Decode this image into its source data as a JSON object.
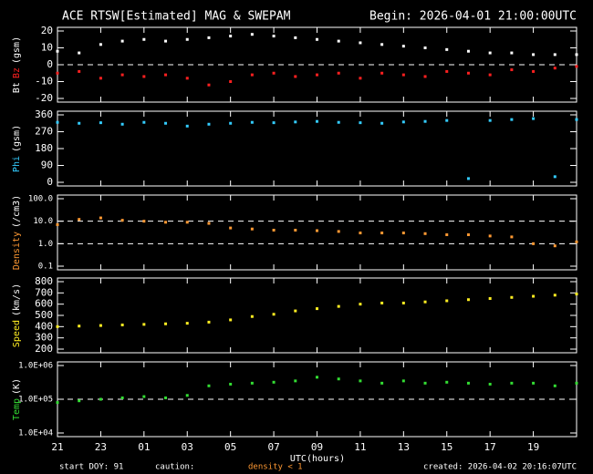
{
  "chart_data": [
    {
      "type": "scatter",
      "title": "ACE RTSW[Estimated] MAG & SWEPAM",
      "subtitle": "Begin: 2026-04-01 21:00:00UTC",
      "ylabel": "(gsm)",
      "xlim": [
        0,
        24
      ],
      "ylim": [
        -20,
        20
      ],
      "yticks": [
        -20,
        -10,
        0,
        10,
        20
      ],
      "hlines": [
        0
      ],
      "x": [
        0,
        1,
        2,
        3,
        4,
        5,
        6,
        7,
        8,
        9,
        10,
        11,
        12,
        13,
        14,
        15,
        16,
        17,
        18,
        19,
        20,
        21,
        22,
        23,
        24
      ],
      "series": [
        {
          "name": "Bt",
          "color": "#ffffff",
          "values": [
            8,
            7,
            12,
            14,
            15,
            14,
            15,
            16,
            17,
            18,
            17,
            16,
            15,
            14,
            13,
            12,
            11,
            10,
            9,
            8,
            7,
            7,
            6,
            6,
            6
          ]
        },
        {
          "name": "Bz",
          "color": "#ff2020",
          "values": [
            -5,
            -4,
            -8,
            -6,
            -7,
            -6,
            -8,
            -12,
            -10,
            -6,
            -5,
            -7,
            -6,
            -5,
            -8,
            -5,
            -6,
            -7,
            -4,
            -5,
            -6,
            -3,
            -4,
            -2,
            -1
          ]
        }
      ]
    },
    {
      "type": "scatter",
      "ylabel": "(gsm)",
      "xlim": [
        0,
        24
      ],
      "ylim": [
        0,
        360
      ],
      "yticks": [
        0,
        90,
        180,
        270,
        360
      ],
      "x": [
        0,
        1,
        2,
        3,
        4,
        5,
        6,
        7,
        8,
        9,
        10,
        11,
        12,
        13,
        14,
        15,
        16,
        17,
        18,
        19,
        20,
        21,
        22,
        23,
        24
      ],
      "series": [
        {
          "name": "Phi",
          "color": "#33ccff",
          "values": [
            320,
            315,
            318,
            310,
            320,
            315,
            300,
            310,
            315,
            320,
            318,
            322,
            325,
            320,
            318,
            315,
            322,
            325,
            330,
            20,
            330,
            335,
            340,
            30,
            335
          ]
        }
      ]
    },
    {
      "type": "scatter",
      "ylabel": "(/cm3)",
      "log_scale": true,
      "xlim": [
        0,
        24
      ],
      "ylim": [
        0.1,
        100
      ],
      "yticks": [
        {
          "value": 100,
          "label": "100.0"
        },
        {
          "value": 10,
          "label": "10.0"
        },
        {
          "value": 1,
          "label": "1.0"
        },
        {
          "value": 0.1,
          "label": "0.1"
        }
      ],
      "hlines": [
        10,
        1
      ],
      "x": [
        0,
        1,
        2,
        3,
        4,
        5,
        6,
        7,
        8,
        9,
        10,
        11,
        12,
        13,
        14,
        15,
        16,
        17,
        18,
        19,
        20,
        21,
        22,
        23,
        24
      ],
      "series": [
        {
          "name": "Density",
          "color": "#ff9933",
          "values": [
            7,
            12,
            14,
            11,
            10,
            9,
            9,
            8,
            5,
            4.5,
            4,
            4,
            3.8,
            3.5,
            3,
            3,
            3,
            2.8,
            2.5,
            2.5,
            2.2,
            2,
            1,
            0.8,
            1.2
          ]
        }
      ]
    },
    {
      "type": "scatter",
      "ylabel": "(km/s)",
      "xlim": [
        0,
        24
      ],
      "ylim": [
        200,
        800
      ],
      "yticks": [
        200,
        300,
        400,
        500,
        600,
        700,
        800
      ],
      "x": [
        0,
        1,
        2,
        3,
        4,
        5,
        6,
        7,
        8,
        9,
        10,
        11,
        12,
        13,
        14,
        15,
        16,
        17,
        18,
        19,
        20,
        21,
        22,
        23,
        24
      ],
      "series": [
        {
          "name": "Speed",
          "color": "#ffee22",
          "values": [
            400,
            405,
            410,
            415,
            420,
            425,
            430,
            440,
            460,
            490,
            510,
            540,
            560,
            580,
            600,
            610,
            610,
            620,
            630,
            640,
            650,
            660,
            670,
            680,
            690
          ]
        }
      ]
    },
    {
      "type": "scatter",
      "ylabel": "(K)",
      "xlabel": "UTC(hours)",
      "log_scale": true,
      "xlim": [
        0,
        24
      ],
      "ylim": [
        10000,
        1000000
      ],
      "yticks": [
        {
          "value": 1000000,
          "label": "1.0E+06"
        },
        {
          "value": 100000,
          "label": "1.0E+05"
        },
        {
          "value": 10000,
          "label": "1.0E+04"
        }
      ],
      "hlines": [
        100000
      ],
      "xticks": [
        {
          "value": 0,
          "label": "21"
        },
        {
          "value": 2,
          "label": "23"
        },
        {
          "value": 4,
          "label": "01"
        },
        {
          "value": 6,
          "label": "03"
        },
        {
          "value": 8,
          "label": "05"
        },
        {
          "value": 10,
          "label": "07"
        },
        {
          "value": 12,
          "label": "09"
        },
        {
          "value": 14,
          "label": "11"
        },
        {
          "value": 16,
          "label": "13"
        },
        {
          "value": 18,
          "label": "15"
        },
        {
          "value": 20,
          "label": "17"
        },
        {
          "value": 22,
          "label": "19"
        }
      ],
      "x": [
        0,
        1,
        2,
        3,
        4,
        5,
        6,
        7,
        8,
        9,
        10,
        11,
        12,
        13,
        14,
        15,
        16,
        17,
        18,
        19,
        20,
        21,
        22,
        23,
        24
      ],
      "series": [
        {
          "name": "Temp",
          "color": "#33dd33",
          "values": [
            80000,
            90000,
            100000,
            110000,
            120000,
            110000,
            130000,
            250000,
            280000,
            300000,
            320000,
            350000,
            450000,
            400000,
            350000,
            300000,
            350000,
            300000,
            320000,
            300000,
            280000,
            300000,
            300000,
            250000,
            300000
          ]
        }
      ]
    }
  ],
  "footer": {
    "start": "start DOY:  91",
    "caution": "caution:",
    "caution_note": "density < 1",
    "created": "created: 2026-04-02 20:16:07UTC"
  }
}
